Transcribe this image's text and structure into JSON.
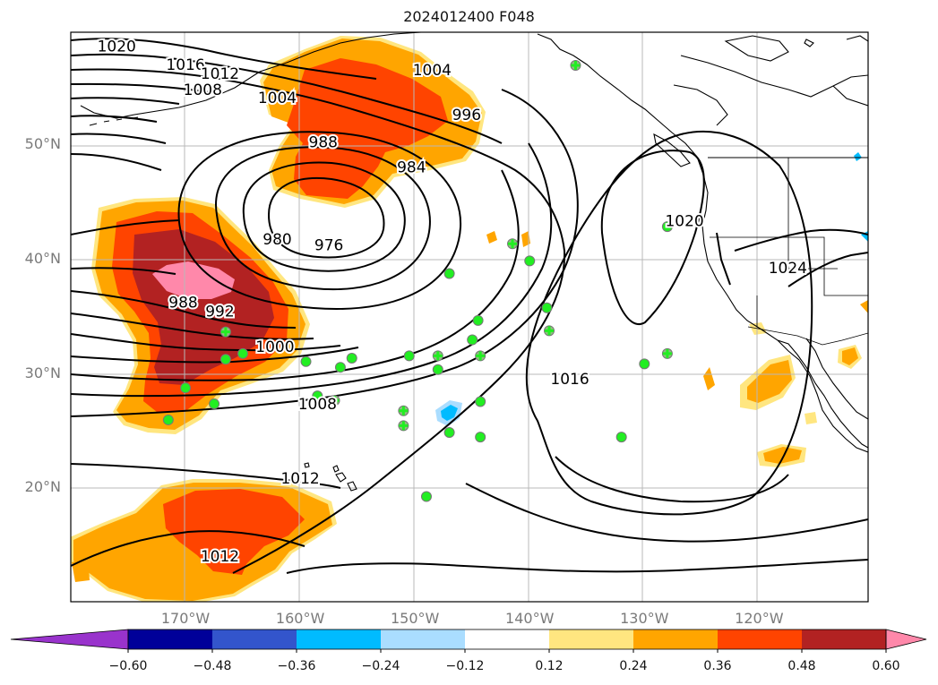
{
  "title": "2024012400 F048",
  "lat_labels": [
    {
      "label": "50°N",
      "lat": 50
    },
    {
      "label": "40°N",
      "lat": 40
    },
    {
      "label": "30°N",
      "lat": 30
    },
    {
      "label": "20°N",
      "lat": 20
    }
  ],
  "lon_labels": [
    {
      "label": "170°W",
      "lon": -170
    },
    {
      "label": "160°W",
      "lon": -160
    },
    {
      "label": "150°W",
      "lon": -150
    },
    {
      "label": "140°W",
      "lon": -140
    },
    {
      "label": "130°W",
      "lon": -130
    },
    {
      "label": "120°W",
      "lon": -120
    }
  ],
  "map_extent": {
    "lon_min": -180,
    "lon_max": -110.5,
    "lat_min": 10,
    "lat_max": 59.8
  },
  "contour_labels": [
    {
      "text": "1020",
      "lon": -176,
      "lat": 58.6
    },
    {
      "text": "1016",
      "lon": -170,
      "lat": 57.0
    },
    {
      "text": "1012",
      "lon": -167,
      "lat": 56.2
    },
    {
      "text": "1008",
      "lon": -168.5,
      "lat": 54.8
    },
    {
      "text": "1004",
      "lon": -162,
      "lat": 54.1
    },
    {
      "text": "1004",
      "lon": -148.5,
      "lat": 56.5
    },
    {
      "text": "996",
      "lon": -145.5,
      "lat": 52.6
    },
    {
      "text": "988",
      "lon": -158,
      "lat": 50.2
    },
    {
      "text": "984",
      "lon": -150.3,
      "lat": 48.0
    },
    {
      "text": "980",
      "lon": -162,
      "lat": 41.7
    },
    {
      "text": "976",
      "lon": -157.5,
      "lat": 41.2
    },
    {
      "text": "988",
      "lon": -170.2,
      "lat": 36.2
    },
    {
      "text": "992",
      "lon": -167,
      "lat": 35.4
    },
    {
      "text": "1000",
      "lon": -162.2,
      "lat": 32.3
    },
    {
      "text": "1008",
      "lon": -158.5,
      "lat": 27.3
    },
    {
      "text": "1012",
      "lon": -160,
      "lat": 20.8
    },
    {
      "text": "1012",
      "lon": -167,
      "lat": 14.0
    },
    {
      "text": "1016",
      "lon": -136.5,
      "lat": 29.5
    },
    {
      "text": "1020",
      "lon": -126.5,
      "lat": 43.3
    },
    {
      "text": "1024",
      "lon": -117.5,
      "lat": 39.2
    }
  ],
  "stations_circle": [
    [
      -147,
      38.7
    ],
    [
      -140,
      39.8
    ],
    [
      -144.5,
      34.6
    ],
    [
      -138.5,
      35.7
    ],
    [
      -145,
      32.9
    ],
    [
      -148,
      30.3
    ],
    [
      -155.5,
      31.3
    ],
    [
      -156.5,
      30.5
    ],
    [
      -159.5,
      31.0
    ],
    [
      -150.5,
      31.5
    ],
    [
      -158.5,
      28.0
    ],
    [
      -147,
      24.8
    ],
    [
      -144.3,
      27.5
    ],
    [
      -144.3,
      24.4
    ],
    [
      -149,
      19.2
    ],
    [
      -166.5,
      31.2
    ],
    [
      -165,
      31.7
    ],
    [
      -170,
      28.7
    ],
    [
      -167.5,
      27.3
    ],
    [
      -171.5,
      25.9
    ],
    [
      -132,
      24.4
    ],
    [
      -130,
      30.8
    ],
    [
      -128,
      42.8
    ]
  ],
  "stations_plus": [
    [
      -136,
      56.9
    ],
    [
      -141.5,
      41.3
    ],
    [
      -148,
      31.5
    ],
    [
      -144.3,
      31.5
    ],
    [
      -138.3,
      33.7
    ],
    [
      -157,
      27.6
    ],
    [
      -151,
      26.7
    ],
    [
      -151,
      25.4
    ],
    [
      -166.5,
      33.6
    ],
    [
      -128,
      31.7
    ]
  ],
  "colorbar": {
    "tick_labels": [
      "−0.60",
      "−0.48",
      "−0.36",
      "−0.24",
      "−0.12",
      "0.12",
      "0.24",
      "0.36",
      "0.48",
      "0.60"
    ],
    "colors": [
      "#9933cc",
      "#000099",
      "#3355cc",
      "#00bbff",
      "#aaddff",
      "#ffffff",
      "#ffe680",
      "#ffa500",
      "#ff4400",
      "#b22222",
      "#ff88aa"
    ]
  },
  "colors": {
    "shade1": "#ffe680",
    "shade2": "#ffa500",
    "shade3": "#ff4400",
    "shade4": "#b22222",
    "shade5": "#ff88aa",
    "neg1": "#aaddff",
    "neg2": "#00bbff",
    "station": "#22ee22",
    "contour": "#000000",
    "grid": "#b8b8b8"
  }
}
